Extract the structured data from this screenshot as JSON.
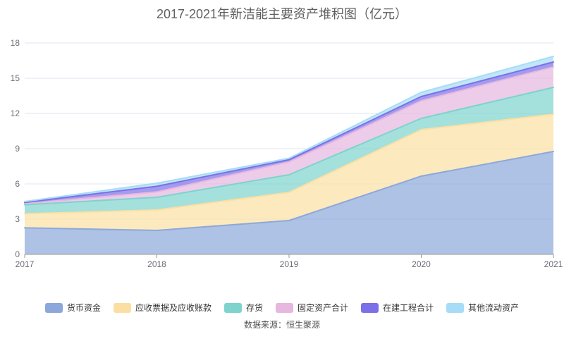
{
  "title": "2017-2021年新洁能主要资产堆积图（亿元）",
  "source": "数据来源：恒生聚源",
  "chart_data": {
    "type": "area",
    "stacked": true,
    "x": [
      "2017",
      "2018",
      "2019",
      "2020",
      "2021"
    ],
    "series": [
      {
        "name": "货币资金",
        "color": "#8CA8DA",
        "values": [
          2.26,
          2.04,
          2.88,
          6.66,
          8.76
        ]
      },
      {
        "name": "应收票据及应收账款",
        "color": "#FBDFA2",
        "values": [
          1.2,
          1.74,
          2.4,
          3.96,
          3.18
        ]
      },
      {
        "name": "存货",
        "color": "#7ED3CD",
        "values": [
          0.76,
          1.08,
          1.5,
          0.96,
          2.28
        ]
      },
      {
        "name": "固定资产合计",
        "color": "#E6B7DF",
        "values": [
          0.1,
          0.46,
          1.1,
          1.5,
          1.74
        ]
      },
      {
        "name": "在建工程合计",
        "color": "#7B70E8",
        "values": [
          0.1,
          0.48,
          0.18,
          0.36,
          0.42
        ]
      },
      {
        "name": "其他流动资产",
        "color": "#A6DCF7",
        "values": [
          0.08,
          0.26,
          0.12,
          0.36,
          0.48
        ]
      }
    ],
    "ylim": [
      0,
      18
    ],
    "yticks": [
      0,
      3,
      6,
      9,
      12,
      15,
      18
    ],
    "grid": true,
    "gridline_color": "#E0E6F1",
    "axis_line_color": "#999999",
    "axis_label_color": "#6E7079",
    "fill_opacity": 0.7,
    "legend_position": "bottom",
    "xlabel": "",
    "ylabel": ""
  }
}
